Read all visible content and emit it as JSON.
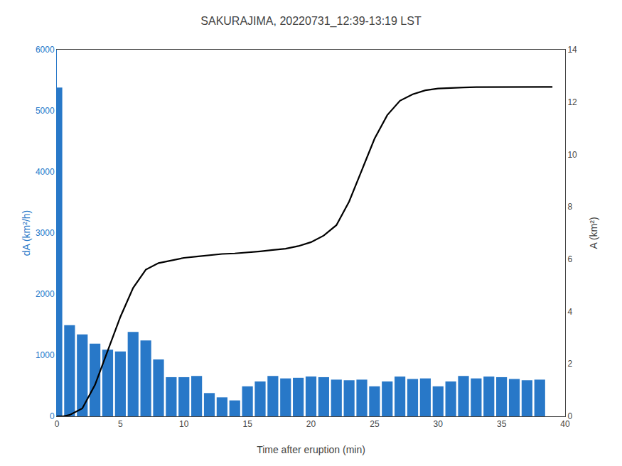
{
  "chart_data": {
    "type": "bar",
    "title": "SAKURAJIMA, 20220731_12:39-13:19 LST",
    "xlabel": "Time after eruption (min)",
    "ylabel": "dA (km²/h)",
    "y2label": "A (km²)",
    "grid": false,
    "series": [
      {
        "type": "bar",
        "color": "#2878c8",
        "x": [
          0,
          1,
          2,
          3,
          4,
          5,
          6,
          7,
          8,
          9,
          10,
          11,
          12,
          13,
          14,
          15,
          16,
          17,
          18,
          19,
          20,
          21,
          22,
          23,
          24,
          25,
          26,
          27,
          28,
          29,
          30,
          31,
          32,
          33,
          34,
          35,
          36,
          37,
          38
        ],
        "values": [
          5380,
          1490,
          1340,
          1190,
          1090,
          1060,
          1380,
          1240,
          930,
          640,
          640,
          660,
          380,
          310,
          260,
          490,
          570,
          660,
          620,
          630,
          650,
          640,
          600,
          590,
          600,
          490,
          570,
          650,
          610,
          620,
          490,
          570,
          660,
          620,
          650,
          640,
          610,
          590,
          600
        ]
      },
      {
        "type": "line",
        "color": "#000000",
        "axis": "y2",
        "x": [
          0,
          0.5,
          1,
          2,
          3,
          4,
          5,
          6,
          7,
          8,
          9,
          10,
          11,
          12,
          13,
          14,
          15,
          16,
          17,
          18,
          19,
          20,
          21,
          22,
          23,
          24,
          25,
          26,
          27,
          28,
          29,
          30,
          31,
          32,
          33,
          34,
          35,
          36,
          37,
          38,
          39
        ],
        "values": [
          0,
          0.0,
          0.05,
          0.3,
          1.2,
          2.5,
          3.8,
          4.9,
          5.6,
          5.85,
          5.95,
          6.05,
          6.1,
          6.15,
          6.2,
          6.22,
          6.25,
          6.3,
          6.35,
          6.4,
          6.5,
          6.65,
          6.9,
          7.3,
          8.2,
          9.4,
          10.6,
          11.5,
          12.05,
          12.3,
          12.45,
          12.52,
          12.55,
          12.56,
          12.57,
          12.57,
          12.58,
          12.58,
          12.58,
          12.58,
          12.58
        ]
      }
    ],
    "xlim": [
      0,
      40
    ],
    "xticks": [
      0,
      5,
      10,
      15,
      20,
      25,
      30,
      35,
      40
    ],
    "ylim": [
      0,
      6000
    ],
    "yticks": [
      0,
      1000,
      2000,
      3000,
      4000,
      5000,
      6000
    ],
    "y2lim": [
      0,
      14
    ],
    "y2ticks": [
      0,
      2,
      4,
      6,
      8,
      10,
      12,
      14
    ]
  }
}
